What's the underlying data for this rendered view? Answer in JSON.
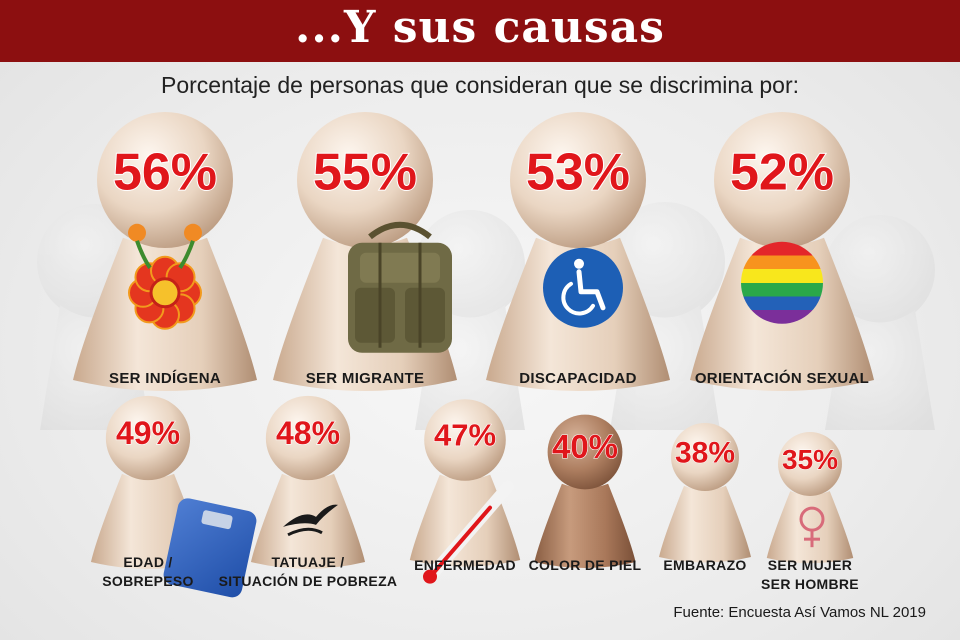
{
  "header": {
    "title": "...Y sus causas",
    "subtitle": "Porcentaje de personas que consideran  que se discrimina por:"
  },
  "footer": {
    "source": "Fuente: Encuesta Así Vamos NL 2019"
  },
  "colors": {
    "title_bar": "#8c0f10",
    "percent_text": "#e0161b",
    "pawn_light": "#f2e2d2",
    "pawn_dark": "#c9a98e",
    "color_de_piel_pawn": "#a9785a"
  },
  "chart_data": {
    "type": "pictogram",
    "title": "...Y sus causas",
    "subtitle": "Porcentaje de personas que consideran  que se discrimina por:",
    "unit": "%",
    "categories": [
      {
        "label": "SER INDÍGENA",
        "value": 56,
        "value_label": "56%",
        "icon": "embroidered-flower-icon"
      },
      {
        "label": "SER MIGRANTE",
        "value": 55,
        "value_label": "55%",
        "icon": "backpack-icon"
      },
      {
        "label": "DISCAPACIDAD",
        "value": 53,
        "value_label": "53%",
        "icon": "wheelchair-icon"
      },
      {
        "label": "ORIENTACIÓN SEXUAL",
        "value": 52,
        "value_label": "52%",
        "icon": "rainbow-flag-icon"
      },
      {
        "label": "EDAD / SOBREPESO",
        "lines": [
          "EDAD /",
          "SOBREPESO"
        ],
        "value": 49,
        "value_label": "49%",
        "icon": "bathroom-scale-icon"
      },
      {
        "label": "TATUAJE / SITUACIÓN DE POBREZA",
        "lines": [
          "TATUAJE /",
          "SITUACIÓN DE POBREZA"
        ],
        "value": 48,
        "value_label": "48%",
        "icon": "tribal-tattoo-icon"
      },
      {
        "label": "ENFERMEDAD",
        "value": 47,
        "value_label": "47%",
        "icon": "thermometer-icon"
      },
      {
        "label": "COLOR DE PIEL",
        "value": 40,
        "value_label": "40%",
        "icon": "dark-skin-pawn-icon"
      },
      {
        "label": "EMBARAZO",
        "value": 38,
        "value_label": "38%",
        "icon": "none"
      },
      {
        "label": "SER MUJER SER HOMBRE",
        "lines": [
          "SER MUJER",
          "SER HOMBRE"
        ],
        "value": 35,
        "value_label": "35%",
        "icon": "female-symbol-icon"
      }
    ],
    "source": "Fuente: Encuesta Así Vamos NL 2019"
  }
}
